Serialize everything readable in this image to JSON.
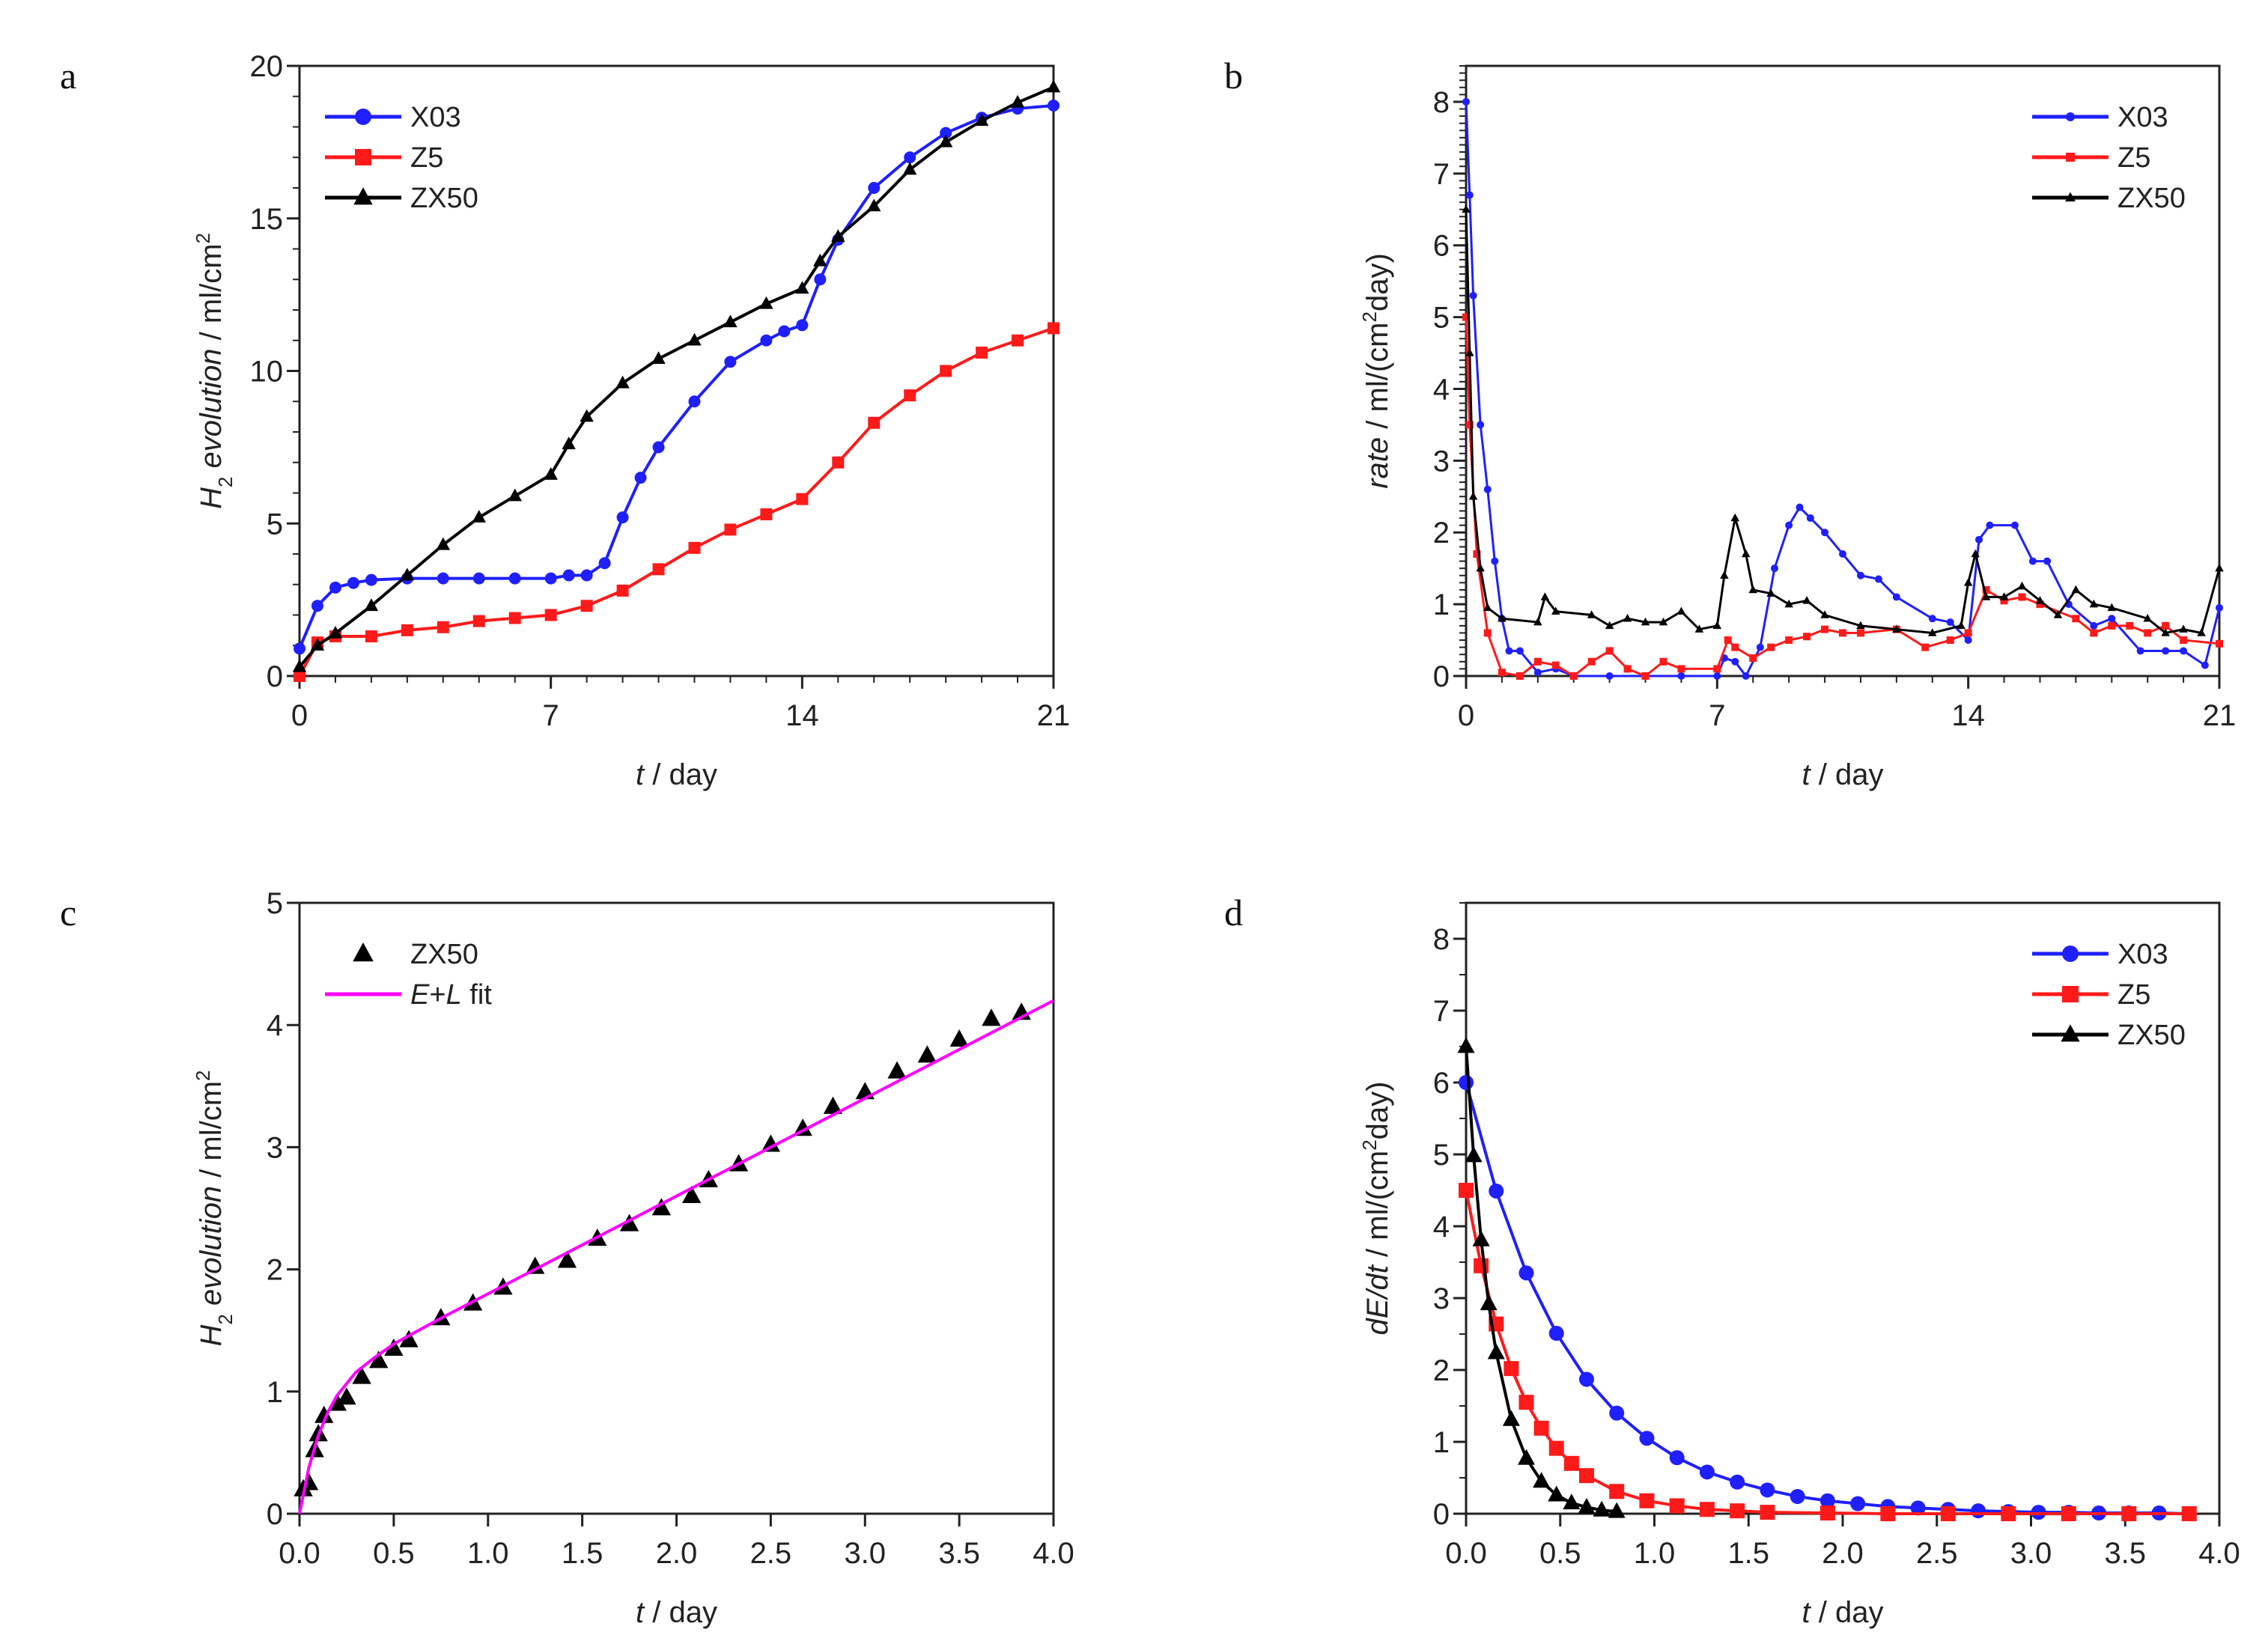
{
  "colors": {
    "X03": "#1f1fff",
    "Z5": "#ff1a1a",
    "ZX50": "#000000",
    "fit": "#ff00ff",
    "axis": "#222222"
  },
  "chart_data": [
    {
      "panel": "a",
      "type": "line",
      "xlim": [
        0,
        21
      ],
      "ylim": [
        0,
        20
      ],
      "xticks": [
        0,
        7,
        14,
        21
      ],
      "yticks": [
        0,
        5,
        10,
        15,
        20
      ],
      "xminor": 1,
      "yminor": 1,
      "xlabel": [
        {
          "t": "t",
          "s": "italic"
        },
        {
          "t": " / day",
          "s": "normal"
        }
      ],
      "ylabel": [
        {
          "t": "H",
          "s": "italic"
        },
        {
          "t": "2",
          "s": "sub"
        },
        {
          "t": " evolution",
          "s": "italic"
        },
        {
          "t": " / ml/cm",
          "s": "normal"
        },
        {
          "t": "2",
          "s": "sup"
        }
      ],
      "legend": "top-left",
      "series": [
        {
          "name": "X03",
          "marker": "circle",
          "x": [
            0,
            0.5,
            1,
            1.5,
            2,
            3,
            4,
            5,
            6,
            7,
            7.5,
            8,
            8.5,
            9,
            9.5,
            10,
            11,
            12,
            13,
            13.5,
            14,
            14.5,
            15,
            16,
            17,
            18,
            19,
            20,
            21
          ],
          "y": [
            0.9,
            2.3,
            2.9,
            3.05,
            3.15,
            3.2,
            3.2,
            3.2,
            3.2,
            3.2,
            3.3,
            3.3,
            3.7,
            5.2,
            6.5,
            7.5,
            9.0,
            10.3,
            11.0,
            11.3,
            11.5,
            13.0,
            14.3,
            16.0,
            17.0,
            17.8,
            18.3,
            18.6,
            18.7
          ]
        },
        {
          "name": "Z5",
          "marker": "square",
          "x": [
            0,
            0.5,
            1,
            2,
            3,
            4,
            5,
            6,
            7,
            8,
            9,
            10,
            11,
            12,
            13,
            14,
            15,
            16,
            17,
            18,
            19,
            20,
            21
          ],
          "y": [
            0,
            1.1,
            1.3,
            1.3,
            1.5,
            1.6,
            1.8,
            1.9,
            2.0,
            2.3,
            2.8,
            3.5,
            4.2,
            4.8,
            5.3,
            5.8,
            7.0,
            8.3,
            9.2,
            10.0,
            10.6,
            11.0,
            11.4
          ]
        },
        {
          "name": "ZX50",
          "marker": "triangle",
          "x": [
            0,
            0.5,
            1,
            2,
            3,
            4,
            5,
            6,
            7,
            7.5,
            8,
            9,
            10,
            11,
            12,
            13,
            14,
            14.5,
            15,
            16,
            17,
            18,
            19,
            20,
            21
          ],
          "y": [
            0.3,
            1.0,
            1.4,
            2.3,
            3.3,
            4.3,
            5.2,
            5.9,
            6.6,
            7.6,
            8.5,
            9.6,
            10.4,
            11.0,
            11.6,
            12.2,
            12.7,
            13.6,
            14.4,
            15.4,
            16.6,
            17.5,
            18.2,
            18.8,
            19.3
          ]
        }
      ]
    },
    {
      "panel": "b",
      "type": "line",
      "xlim": [
        0,
        21
      ],
      "ylim": [
        0,
        8.5
      ],
      "xticks": [
        0,
        7,
        14,
        21
      ],
      "yticks": [
        0,
        1,
        2,
        3,
        4,
        5,
        6,
        7,
        8
      ],
      "xminor": 1,
      "yminor": 0.1,
      "xlabel": [
        {
          "t": "t",
          "s": "italic"
        },
        {
          "t": " / day",
          "s": "normal"
        }
      ],
      "ylabel": [
        {
          "t": "rate",
          "s": "italic"
        },
        {
          "t": " / ml/(cm",
          "s": "normal"
        },
        {
          "t": "2",
          "s": "sup"
        },
        {
          "t": "day)",
          "s": "normal"
        }
      ],
      "legend": "top-right",
      "series": [
        {
          "name": "X03",
          "marker": "circle",
          "x": [
            0,
            0.1,
            0.2,
            0.4,
            0.6,
            0.8,
            1,
            1.2,
            1.5,
            2,
            2.5,
            3,
            4,
            5,
            6,
            7,
            7.2,
            7.5,
            7.8,
            8.2,
            8.6,
            9,
            9.3,
            9.6,
            10,
            10.5,
            11,
            11.5,
            12,
            13,
            13.5,
            14,
            14.3,
            14.6,
            15.3,
            15.8,
            16.2,
            16.8,
            17.5,
            18,
            18.8,
            19.5,
            20,
            20.6,
            21
          ],
          "y": [
            8,
            6.7,
            5.3,
            3.5,
            2.6,
            1.6,
            0.8,
            0.35,
            0.35,
            0.05,
            0.1,
            0,
            0,
            0,
            0,
            0,
            0.25,
            0.2,
            0,
            0.4,
            1.5,
            2.1,
            2.35,
            2.2,
            2.0,
            1.7,
            1.4,
            1.35,
            1.1,
            0.8,
            0.75,
            0.5,
            1.9,
            2.1,
            2.1,
            1.6,
            1.6,
            1.0,
            0.7,
            0.8,
            0.35,
            0.35,
            0.35,
            0.15,
            0.95
          ]
        },
        {
          "name": "Z5",
          "marker": "square",
          "x": [
            0,
            0.1,
            0.3,
            0.6,
            1,
            1.5,
            2,
            2.5,
            3,
            3.5,
            4,
            4.5,
            5,
            5.5,
            6,
            7,
            7.3,
            7.5,
            8,
            8.5,
            9,
            9.5,
            10,
            10.5,
            11,
            12,
            12.8,
            13.5,
            14,
            14.5,
            15,
            15.5,
            16,
            17,
            17.5,
            18,
            18.5,
            19,
            19.5,
            20,
            21
          ],
          "y": [
            5,
            3.5,
            1.7,
            0.6,
            0.05,
            0,
            0.2,
            0.15,
            0,
            0.2,
            0.35,
            0.1,
            0,
            0.2,
            0.1,
            0.1,
            0.5,
            0.4,
            0.25,
            0.4,
            0.5,
            0.55,
            0.65,
            0.6,
            0.6,
            0.65,
            0.4,
            0.5,
            0.6,
            1.2,
            1.05,
            1.1,
            1.0,
            0.8,
            0.6,
            0.7,
            0.7,
            0.6,
            0.7,
            0.5,
            0.45
          ]
        },
        {
          "name": "ZX50",
          "marker": "triangle",
          "x": [
            0,
            0.1,
            0.2,
            0.4,
            0.6,
            1,
            2,
            2.2,
            2.5,
            3.5,
            4,
            4.5,
            5,
            5.5,
            6,
            6.5,
            7,
            7.2,
            7.5,
            7.8,
            8,
            8.5,
            9,
            9.5,
            10,
            11,
            12,
            13,
            13.8,
            14,
            14.2,
            14.5,
            15,
            15.5,
            16,
            16.5,
            17,
            17.5,
            18,
            19,
            19.5,
            20,
            20.5,
            21
          ],
          "y": [
            6.5,
            4.5,
            2.5,
            1.5,
            0.95,
            0.8,
            0.75,
            1.1,
            0.9,
            0.85,
            0.7,
            0.8,
            0.75,
            0.75,
            0.9,
            0.65,
            0.7,
            1.4,
            2.2,
            1.7,
            1.2,
            1.15,
            1.0,
            1.05,
            0.85,
            0.7,
            0.65,
            0.6,
            0.7,
            1.3,
            1.7,
            1.1,
            1.1,
            1.25,
            1.05,
            0.85,
            1.2,
            1.0,
            0.95,
            0.8,
            0.6,
            0.65,
            0.6,
            1.5
          ]
        }
      ]
    },
    {
      "panel": "c",
      "type": "scatter",
      "xlim": [
        0,
        4
      ],
      "ylim": [
        0,
        5
      ],
      "xticks": [
        0,
        0.5,
        1,
        1.5,
        2,
        2.5,
        3,
        3.5,
        4
      ],
      "yticks": [
        0,
        1,
        2,
        3,
        4,
        5
      ],
      "xminor": 0,
      "yminor": 0,
      "xticklabels": [
        "0.0",
        "0.5",
        "1.0",
        "1.5",
        "2.0",
        "2.5",
        "3.0",
        "3.5",
        "4.0"
      ],
      "xlabel": [
        {
          "t": "t",
          "s": "italic"
        },
        {
          "t": " / day",
          "s": "normal"
        }
      ],
      "ylabel": [
        {
          "t": "H",
          "s": "italic"
        },
        {
          "t": "2",
          "s": "sub"
        },
        {
          "t": " evolution",
          "s": "italic"
        },
        {
          "t": " / ml/cm",
          "s": "normal"
        },
        {
          "t": "2",
          "s": "sup"
        }
      ],
      "legend": "top-left",
      "series": [
        {
          "name": "ZX50",
          "marker": "triangle",
          "noline": true,
          "x": [
            0.02,
            0.05,
            0.08,
            0.1,
            0.13,
            0.2,
            0.25,
            0.33,
            0.42,
            0.5,
            0.58,
            0.75,
            0.92,
            1.08,
            1.25,
            1.42,
            1.58,
            1.75,
            1.92,
            2.08,
            2.17,
            2.33,
            2.5,
            2.67,
            2.83,
            3.0,
            3.17,
            3.33,
            3.5,
            3.67,
            3.83
          ],
          "y": [
            0.2,
            0.25,
            0.52,
            0.65,
            0.8,
            0.9,
            0.95,
            1.12,
            1.25,
            1.35,
            1.42,
            1.6,
            1.72,
            1.85,
            2.02,
            2.07,
            2.25,
            2.37,
            2.5,
            2.6,
            2.73,
            2.86,
            3.02,
            3.15,
            3.33,
            3.45,
            3.62,
            3.75,
            3.88,
            4.05,
            4.1
          ]
        },
        {
          "name": "E+L fit",
          "legend_parts": [
            {
              "t": "E",
              "s": "italic"
            },
            {
              "t": "+",
              "s": "normal"
            },
            {
              "t": "L",
              "s": "italic"
            },
            {
              "t": " fit",
              "s": "normal"
            }
          ],
          "marker": "none",
          "color_key": "fit",
          "x": [
            0,
            0.05,
            0.1,
            0.15,
            0.2,
            0.3,
            0.4,
            0.5,
            0.75,
            1,
            1.5,
            2,
            2.5,
            3,
            3.5,
            4
          ],
          "y": [
            0,
            0.38,
            0.64,
            0.83,
            0.97,
            1.16,
            1.28,
            1.39,
            1.6,
            1.8,
            2.2,
            2.6,
            3.0,
            3.4,
            3.8,
            4.2
          ]
        }
      ]
    },
    {
      "panel": "d",
      "type": "line",
      "xlim": [
        0,
        4
      ],
      "ylim": [
        0,
        8.5
      ],
      "xticks": [
        0,
        0.5,
        1,
        1.5,
        2,
        2.5,
        3,
        3.5,
        4
      ],
      "yticks": [
        0,
        1,
        2,
        3,
        4,
        5,
        6,
        7,
        8
      ],
      "xminor": 0,
      "yminor": 0.5,
      "xticklabels": [
        "0.0",
        "0.5",
        "1.0",
        "1.5",
        "2.0",
        "2.5",
        "3.0",
        "3.5",
        "4.0"
      ],
      "xlabel": [
        {
          "t": "t",
          "s": "italic"
        },
        {
          "t": " / day",
          "s": "normal"
        }
      ],
      "ylabel": [
        {
          "t": "dE/dt",
          "s": "italic"
        },
        {
          "t": " / ml/(cm",
          "s": "normal"
        },
        {
          "t": "2",
          "s": "sup"
        },
        {
          "t": "day)",
          "s": "normal"
        }
      ],
      "legend": "top-right",
      "series": [
        {
          "name": "X03",
          "marker": "circle",
          "x": [
            0,
            0.16,
            0.32,
            0.48,
            0.64,
            0.8,
            0.96,
            1.12,
            1.28,
            1.44,
            1.6,
            1.76,
            1.92,
            2.08,
            2.24,
            2.4,
            2.56,
            2.72,
            2.88,
            3.04,
            3.2,
            3.36,
            3.52,
            3.68,
            3.84
          ],
          "y": [
            6,
            4.49,
            3.35,
            2.51,
            1.87,
            1.4,
            1.05,
            0.78,
            0.58,
            0.44,
            0.33,
            0.24,
            0.18,
            0.14,
            0.1,
            0.08,
            0.06,
            0.04,
            0.03,
            0.02,
            0.02,
            0.01,
            0.01,
            0.01,
            0
          ]
        },
        {
          "name": "Z5",
          "marker": "square",
          "x": [
            0,
            0.08,
            0.16,
            0.24,
            0.32,
            0.4,
            0.48,
            0.56,
            0.64,
            0.8,
            0.96,
            1.12,
            1.28,
            1.44,
            1.6,
            1.92,
            2.24,
            2.56,
            2.88,
            3.2,
            3.52,
            3.84
          ],
          "y": [
            4.5,
            3.45,
            2.64,
            2.02,
            1.55,
            1.19,
            0.91,
            0.7,
            0.53,
            0.31,
            0.18,
            0.11,
            0.06,
            0.04,
            0.02,
            0.01,
            0,
            0,
            0,
            0,
            0,
            0
          ]
        },
        {
          "name": "ZX50",
          "marker": "triangle",
          "x": [
            0,
            0.04,
            0.08,
            0.12,
            0.16,
            0.24,
            0.32,
            0.4,
            0.48,
            0.56,
            0.64,
            0.72,
            0.8
          ],
          "y": [
            6.5,
            4.98,
            3.81,
            2.92,
            2.24,
            1.31,
            0.77,
            0.45,
            0.26,
            0.15,
            0.09,
            0.05,
            0.03
          ]
        }
      ]
    }
  ]
}
